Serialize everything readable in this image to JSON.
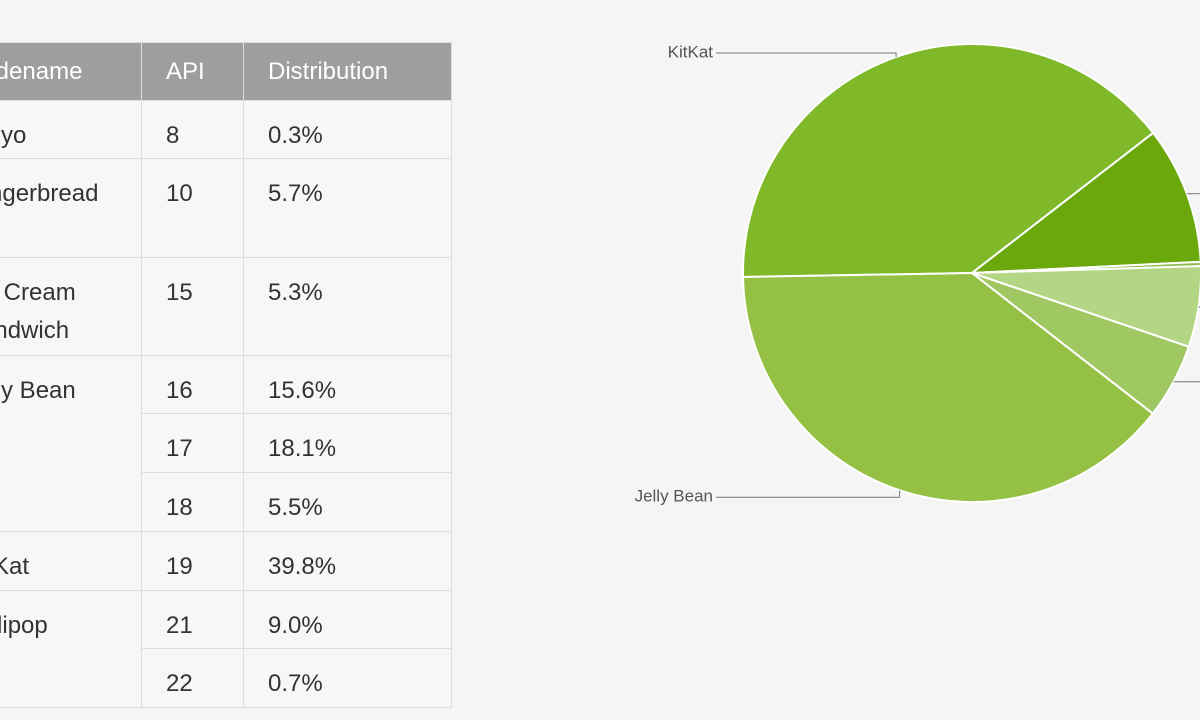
{
  "table": {
    "header": [
      "Codename",
      "API",
      "Distribution"
    ],
    "groups": [
      {
        "codename": "Froyo",
        "rows": [
          [
            "8",
            "0.3%"
          ]
        ]
      },
      {
        "codename": "Gingerbread",
        "rows": [
          [
            "10",
            "5.7%"
          ]
        ]
      },
      {
        "codename": "Ice Cream Sandwich",
        "rows": [
          [
            "15",
            "5.3%"
          ]
        ]
      },
      {
        "codename": "Jelly Bean",
        "rows": [
          [
            "16",
            "15.6%"
          ],
          [
            "17",
            "18.1%"
          ],
          [
            "18",
            "5.5%"
          ]
        ]
      },
      {
        "codename": "KitKat",
        "rows": [
          [
            "19",
            "39.8%"
          ]
        ]
      },
      {
        "codename": "Lollipop",
        "rows": [
          [
            "21",
            "9.0%"
          ],
          [
            "22",
            "0.7%"
          ]
        ]
      }
    ]
  },
  "chart_data": {
    "type": "pie",
    "categories": [
      "KitKat",
      null,
      null,
      null,
      null,
      "Jelly Bean"
    ],
    "values": [
      39.8,
      9.7,
      0.3,
      5.7,
      5.3,
      39.2
    ],
    "colors": [
      "#7fb92a",
      "#6aa80c",
      "#8dbd4a",
      "#b3d684",
      "#a0c862",
      "#94c043"
    ]
  }
}
